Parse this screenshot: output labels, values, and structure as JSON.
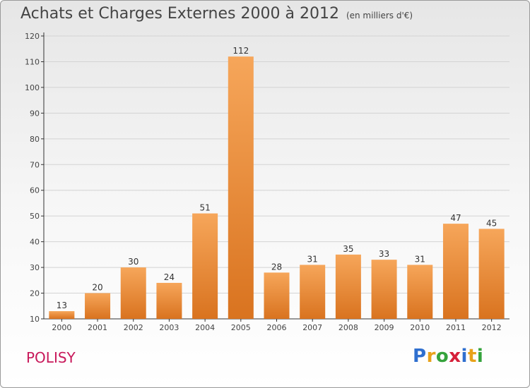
{
  "title": "Achats et Charges Externes 2000 à 2012",
  "subtitle": "(en milliers d'€)",
  "commune": "POLISY",
  "logo": {
    "letters": [
      "P",
      "r",
      "o",
      "x",
      "i",
      "t",
      "i"
    ],
    "colors": [
      "#2f6fcf",
      "#e8a21a",
      "#35a33c",
      "#d6203a",
      "#2f6fcf",
      "#e8a21a",
      "#35a33c"
    ]
  },
  "colors": {
    "bar_top": "#f6a65a",
    "bar_bottom": "#d9731f",
    "commune": "#c8185a"
  },
  "chart_data": {
    "type": "bar",
    "title": "Achats et Charges Externes 2000 à 2012",
    "subtitle": "(en milliers d'€)",
    "categories": [
      "2000",
      "2001",
      "2002",
      "2003",
      "2004",
      "2005",
      "2006",
      "2007",
      "2008",
      "2009",
      "2010",
      "2011",
      "2012"
    ],
    "values": [
      13,
      20,
      30,
      24,
      51,
      112,
      28,
      31,
      35,
      33,
      31,
      47,
      45
    ],
    "ylim": [
      10,
      120
    ],
    "yticks": [
      10,
      20,
      30,
      40,
      50,
      60,
      70,
      80,
      90,
      100,
      110,
      120
    ],
    "grid": true,
    "data_labels": true
  }
}
